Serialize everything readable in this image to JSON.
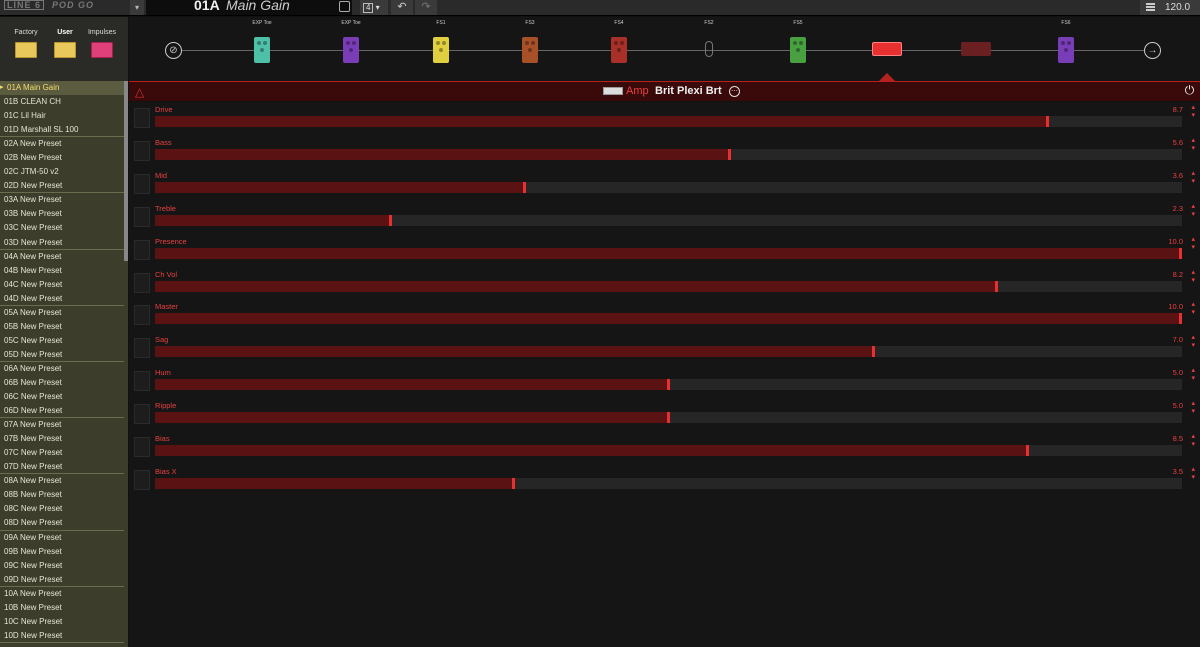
{
  "app": {
    "logo_brand": "LINE 6",
    "logo_product": "POD GO",
    "preset_id": "01A",
    "preset_name": "Main Gain",
    "snapshot": "4",
    "tempo": "120.0"
  },
  "sidebar": {
    "tabs": [
      {
        "label": "Factory",
        "icon": "folder-icon"
      },
      {
        "label": "User",
        "icon": "user-folder-icon"
      },
      {
        "label": "Impulses",
        "icon": "impulse-icon"
      }
    ],
    "selected_index": 0,
    "presets": [
      "01A Main Gain",
      "01B CLEAN CH",
      "01C Lil Hair",
      "01D Marshall SL 100",
      "02A New Preset",
      "02B New Preset",
      "02C JTM-50 v2",
      "02D New Preset",
      "03A New Preset",
      "03B New Preset",
      "03C New Preset",
      "03D New Preset",
      "04A New Preset",
      "04B New Preset",
      "04C New Preset",
      "04D New Preset",
      "05A New Preset",
      "05B New Preset",
      "05C New Preset",
      "05D New Preset",
      "06A New Preset",
      "06B New Preset",
      "06C New Preset",
      "06D New Preset",
      "07A New Preset",
      "07B New Preset",
      "07C New Preset",
      "07D New Preset",
      "08A New Preset",
      "08B New Preset",
      "08C New Preset",
      "08D New Preset",
      "09A New Preset",
      "09B New Preset",
      "09C New Preset",
      "09D New Preset",
      "10A New Preset",
      "10B New Preset",
      "10C New Preset",
      "10D New Preset"
    ]
  },
  "chain": {
    "blocks": [
      {
        "label": "EXP Toe",
        "type": "wah",
        "color": "#4fc0a8"
      },
      {
        "label": "EXP Toe",
        "type": "volume",
        "color": "#7a3db8"
      },
      {
        "label": "FS1",
        "type": "distortion",
        "color": "#e0d040"
      },
      {
        "label": "FS3",
        "type": "eq",
        "color": "#a85028"
      },
      {
        "label": "FS4",
        "type": "compressor",
        "color": "#a83028"
      },
      {
        "label": "FS2",
        "type": "empty",
        "color": ""
      },
      {
        "label": "FS5",
        "type": "fx-loop",
        "color": "#48a040"
      },
      {
        "label": "",
        "type": "amp",
        "color": "#e83030"
      },
      {
        "label": "",
        "type": "cab",
        "color": "#6a2020"
      },
      {
        "label": "FS6",
        "type": "modulation",
        "color": "#7a3db8"
      }
    ],
    "selected_index": 7
  },
  "amp": {
    "category": "Amp",
    "model": "Brit Plexi Brt",
    "params": [
      {
        "label": "Drive",
        "display": "8.7",
        "fraction": 0.87
      },
      {
        "label": "Bass",
        "display": "5.6",
        "fraction": 0.56
      },
      {
        "label": "Mid",
        "display": "3.6",
        "fraction": 0.36
      },
      {
        "label": "Treble",
        "display": "2.3",
        "fraction": 0.23
      },
      {
        "label": "Presence",
        "display": "10.0",
        "fraction": 1.0
      },
      {
        "label": "Ch Vol",
        "display": "8.2",
        "fraction": 0.82
      },
      {
        "label": "Master",
        "display": "10.0",
        "fraction": 1.0
      },
      {
        "label": "Sag",
        "display": "7.0",
        "fraction": 0.7
      },
      {
        "label": "Hum",
        "display": "5.0",
        "fraction": 0.5
      },
      {
        "label": "Ripple",
        "display": "5.0",
        "fraction": 0.5
      },
      {
        "label": "Bias",
        "display": "8.5",
        "fraction": 0.85
      },
      {
        "label": "Bias X",
        "display": "3.5",
        "fraction": 0.35
      }
    ]
  },
  "colors": {
    "accent": "#e83030",
    "fill": "#5a1212",
    "selected_preset": "#f5dd70"
  }
}
